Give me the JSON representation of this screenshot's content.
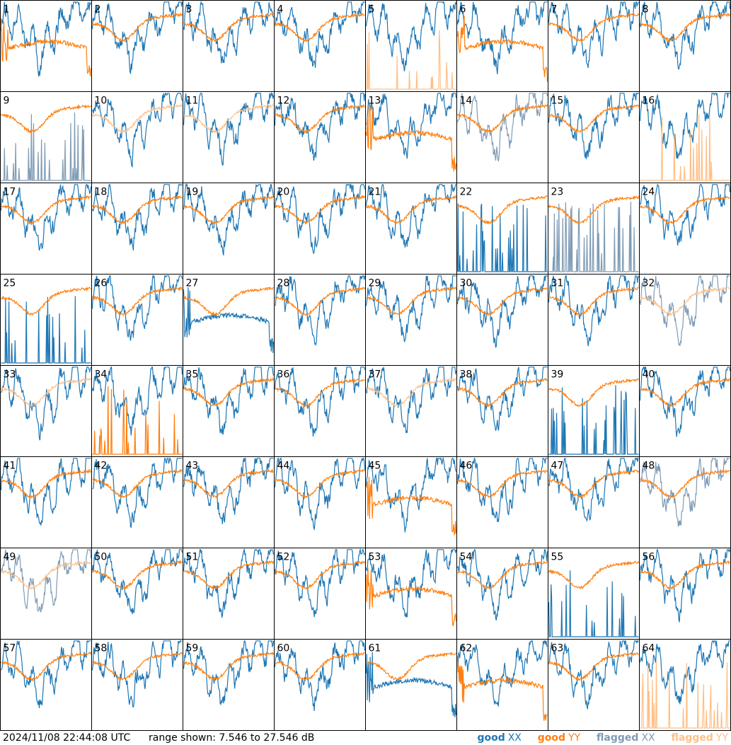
{
  "chart_data": {
    "type": "line",
    "grid_layout": "8x8 small multiples",
    "panels": [
      1,
      2,
      3,
      4,
      5,
      6,
      7,
      8,
      9,
      10,
      11,
      12,
      13,
      14,
      15,
      16,
      17,
      18,
      19,
      20,
      21,
      22,
      23,
      24,
      25,
      26,
      27,
      28,
      29,
      30,
      31,
      32,
      33,
      34,
      35,
      36,
      37,
      38,
      39,
      40,
      41,
      42,
      43,
      44,
      45,
      46,
      47,
      48,
      49,
      50,
      51,
      52,
      53,
      54,
      55,
      56,
      57,
      58,
      59,
      60,
      61,
      62,
      63,
      64
    ],
    "series": [
      {
        "name": "good XX",
        "color": "#1f77b4"
      },
      {
        "name": "good YY",
        "color": "#ff7f0e"
      },
      {
        "name": "flagged XX",
        "color": "#7f9bb5"
      },
      {
        "name": "flagged YY",
        "color": "#ffbf86"
      }
    ],
    "ylim": [
      7.546,
      27.546
    ],
    "unit": "dB",
    "flagged_xx_panels": [
      9,
      14,
      23,
      32,
      48,
      49
    ],
    "flagged_yy_panels": [
      5,
      10,
      11,
      16,
      32,
      33,
      37,
      49,
      64
    ],
    "spiky_xx_panels": [
      9,
      22,
      23,
      25,
      39,
      55
    ],
    "spiky_yy_panels": [
      5,
      16,
      34,
      64
    ],
    "deviant_xx_panels": [
      27,
      61
    ],
    "deviant_yy_panels": [
      1,
      6,
      13,
      45,
      53,
      62
    ]
  },
  "footer": {
    "timestamp": "2024/11/08 22:44:08 UTC",
    "range": "range shown: 7.546 to 27.546 dB",
    "legend": {
      "good": "good",
      "flagged": "flagged",
      "xx": "XX",
      "yy": "YY"
    }
  }
}
